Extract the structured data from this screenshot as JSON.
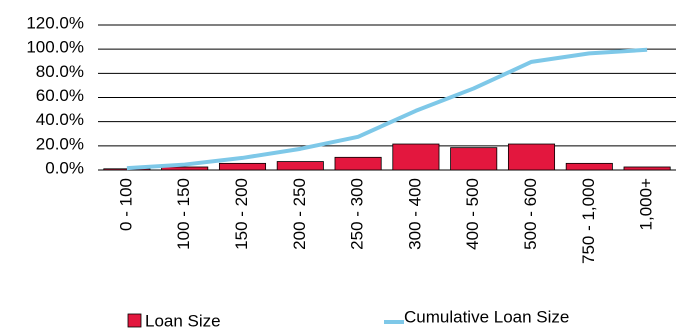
{
  "chart_data": {
    "type": "bar",
    "title": "",
    "xlabel": "",
    "ylabel": "",
    "categories": [
      "0 - 100",
      "100 - 150",
      "150 - 200",
      "200 - 250",
      "250 - 300",
      "300 - 400",
      "400 - 500",
      "500 - 600",
      "750 - 1,000",
      "1,000+"
    ],
    "series": [
      {
        "name": "Loan Size",
        "kind": "bar",
        "color": "#e3173e",
        "values": [
          1.0,
          2.5,
          5.5,
          7.0,
          10.5,
          21.5,
          18.5,
          21.5,
          5.5,
          2.5
        ]
      },
      {
        "name": "Cumulative Loan Size",
        "kind": "line",
        "color": "#7ec8e8",
        "values": [
          1.5,
          4.5,
          10.0,
          17.5,
          27.5,
          49.0,
          67.5,
          89.5,
          96.5,
          99.5
        ]
      }
    ],
    "ylim": [
      0,
      120
    ],
    "yticks": [
      "0.0%",
      "20.0%",
      "40.0%",
      "60.0%",
      "80.0%",
      "100.0%",
      "120.0%"
    ],
    "grid": true,
    "legend_position": "bottom"
  }
}
